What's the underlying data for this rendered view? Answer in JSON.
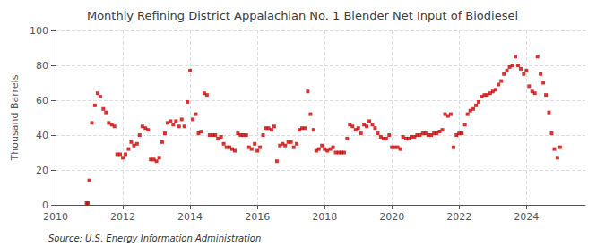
{
  "chart_data": {
    "type": "scatter",
    "title": "Monthly Refining District Appalachian No. 1 Blender Net Input of Biodiesel",
    "ylabel": "Thousand Barrels",
    "source": "Source: U.S. Energy Information Administration",
    "color": "#cc0000",
    "marker": "square",
    "grid": true,
    "xlim": [
      2010.0,
      2025.75
    ],
    "xticks": [
      2010,
      2012,
      2014,
      2016,
      2018,
      2020,
      2022,
      2024
    ],
    "ylim": [
      0,
      100
    ],
    "yticks": [
      0,
      20,
      40,
      60,
      80,
      100
    ],
    "x": [
      2010.92,
      2010.96,
      2011.0,
      2011.08,
      2011.17,
      2011.25,
      2011.33,
      2011.42,
      2011.5,
      2011.58,
      2011.67,
      2011.75,
      2011.83,
      2011.92,
      2012.0,
      2012.08,
      2012.17,
      2012.25,
      2012.33,
      2012.42,
      2012.5,
      2012.58,
      2012.67,
      2012.75,
      2012.83,
      2012.92,
      2013.0,
      2013.08,
      2013.17,
      2013.25,
      2013.33,
      2013.42,
      2013.5,
      2013.58,
      2013.67,
      2013.75,
      2013.83,
      2013.92,
      2014.0,
      2014.08,
      2014.17,
      2014.25,
      2014.33,
      2014.42,
      2014.5,
      2014.58,
      2014.67,
      2014.75,
      2014.83,
      2014.92,
      2015.0,
      2015.08,
      2015.17,
      2015.25,
      2015.33,
      2015.42,
      2015.5,
      2015.58,
      2015.67,
      2015.75,
      2015.83,
      2015.92,
      2016.0,
      2016.08,
      2016.17,
      2016.25,
      2016.33,
      2016.42,
      2016.5,
      2016.58,
      2016.67,
      2016.75,
      2016.83,
      2016.92,
      2017.0,
      2017.08,
      2017.17,
      2017.25,
      2017.33,
      2017.42,
      2017.5,
      2017.58,
      2017.67,
      2017.75,
      2017.83,
      2017.92,
      2018.0,
      2018.08,
      2018.17,
      2018.25,
      2018.33,
      2018.42,
      2018.5,
      2018.58,
      2018.67,
      2018.75,
      2018.83,
      2018.92,
      2019.0,
      2019.08,
      2019.17,
      2019.25,
      2019.33,
      2019.42,
      2019.5,
      2019.58,
      2019.67,
      2019.75,
      2019.83,
      2019.92,
      2020.0,
      2020.08,
      2020.17,
      2020.25,
      2020.33,
      2020.42,
      2020.5,
      2020.58,
      2020.67,
      2020.75,
      2020.83,
      2020.92,
      2021.0,
      2021.08,
      2021.17,
      2021.25,
      2021.33,
      2021.42,
      2021.5,
      2021.58,
      2021.67,
      2021.75,
      2021.83,
      2021.92,
      2022.0,
      2022.08,
      2022.17,
      2022.25,
      2022.33,
      2022.42,
      2022.5,
      2022.58,
      2022.67,
      2022.75,
      2022.83,
      2022.92,
      2023.0,
      2023.08,
      2023.17,
      2023.25,
      2023.33,
      2023.42,
      2023.5,
      2023.58,
      2023.67,
      2023.75,
      2023.83,
      2023.92,
      2024.0,
      2024.08,
      2024.17,
      2024.25,
      2024.33,
      2024.42,
      2024.5,
      2024.58,
      2024.67,
      2024.75,
      2024.83,
      2024.92,
      2025.0
    ],
    "values": [
      1,
      1,
      14,
      47,
      57,
      64,
      62,
      55,
      53,
      47,
      46,
      45,
      29,
      29,
      27,
      29,
      32,
      36,
      34,
      35,
      40,
      45,
      44,
      43,
      26,
      26,
      25,
      27,
      36,
      41,
      47,
      48,
      46,
      48,
      45,
      49,
      45,
      59,
      77,
      49,
      52,
      41,
      42,
      64,
      63,
      40,
      40,
      40,
      38,
      39,
      35,
      33,
      33,
      32,
      31,
      41,
      40,
      40,
      40,
      33,
      32,
      35,
      31,
      33,
      40,
      44,
      44,
      43,
      45,
      25,
      34,
      35,
      34,
      36,
      36,
      33,
      35,
      43,
      44,
      44,
      65,
      52,
      43,
      31,
      32,
      34,
      32,
      31,
      32,
      33,
      30,
      30,
      30,
      30,
      38,
      46,
      45,
      43,
      44,
      41,
      46,
      45,
      48,
      46,
      44,
      41,
      39,
      38,
      38,
      40,
      33,
      33,
      33,
      32,
      39,
      38,
      38,
      39,
      39,
      40,
      40,
      41,
      41,
      40,
      40,
      41,
      41,
      42,
      43,
      52,
      51,
      52,
      33,
      40,
      41,
      41,
      46,
      52,
      54,
      55,
      57,
      59,
      62,
      63,
      63,
      64,
      65,
      66,
      69,
      71,
      75,
      77,
      79,
      80,
      85,
      80,
      78,
      75,
      77,
      68,
      65,
      64,
      85,
      75,
      70,
      63,
      53,
      41,
      32,
      27,
      33
    ]
  }
}
